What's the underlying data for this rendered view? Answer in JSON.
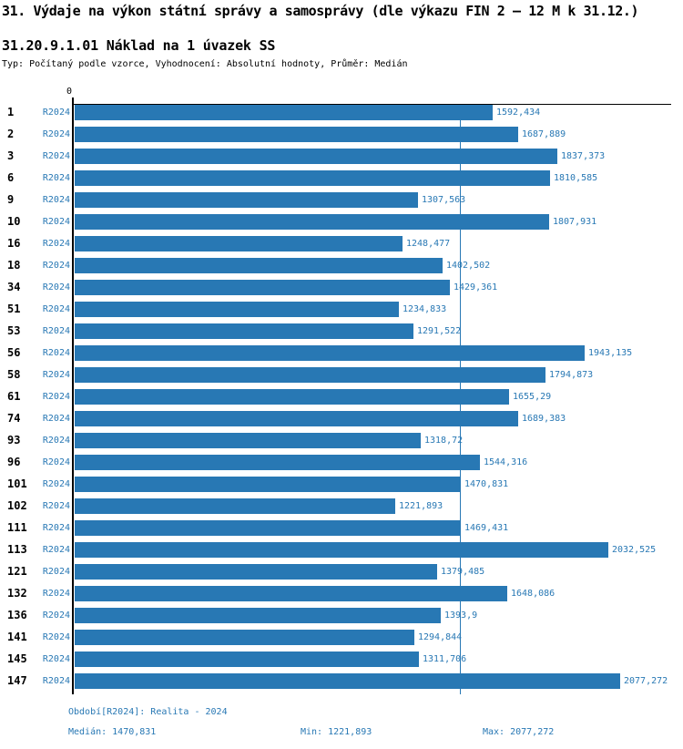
{
  "title": "31. Výdaje na výkon státní správy a samosprávy (dle výkazu FIN 2 – 12 M k 31.12.)",
  "subtitle": "31.20.9.1.01 Náklad na 1 úvazek SS",
  "meta_line": "Typ: Počítaný podle vzorce, Vyhodnocení: Absolutní hodnoty, Průměr: Medián",
  "axis": {
    "zero_label": "0"
  },
  "chart_data": {
    "type": "bar",
    "orientation": "horizontal",
    "series_label": "R2024",
    "bar_color": "#2878b4",
    "median_value": 1470.831,
    "xlim": [
      0,
      2275
    ],
    "grid": false,
    "rows": [
      {
        "category": "1",
        "period": "R2024",
        "value": 1592.434,
        "display": "1592,434"
      },
      {
        "category": "2",
        "period": "R2024",
        "value": 1687.889,
        "display": "1687,889"
      },
      {
        "category": "3",
        "period": "R2024",
        "value": 1837.373,
        "display": "1837,373"
      },
      {
        "category": "6",
        "period": "R2024",
        "value": 1810.585,
        "display": "1810,585"
      },
      {
        "category": "9",
        "period": "R2024",
        "value": 1307.563,
        "display": "1307,563"
      },
      {
        "category": "10",
        "period": "R2024",
        "value": 1807.931,
        "display": "1807,931"
      },
      {
        "category": "16",
        "period": "R2024",
        "value": 1248.477,
        "display": "1248,477"
      },
      {
        "category": "18",
        "period": "R2024",
        "value": 1402.502,
        "display": "1402,502"
      },
      {
        "category": "34",
        "period": "R2024",
        "value": 1429.361,
        "display": "1429,361"
      },
      {
        "category": "51",
        "period": "R2024",
        "value": 1234.833,
        "display": "1234,833"
      },
      {
        "category": "53",
        "period": "R2024",
        "value": 1291.522,
        "display": "1291,522"
      },
      {
        "category": "56",
        "period": "R2024",
        "value": 1943.135,
        "display": "1943,135"
      },
      {
        "category": "58",
        "period": "R2024",
        "value": 1794.873,
        "display": "1794,873"
      },
      {
        "category": "61",
        "period": "R2024",
        "value": 1655.29,
        "display": "1655,29"
      },
      {
        "category": "74",
        "period": "R2024",
        "value": 1689.383,
        "display": "1689,383"
      },
      {
        "category": "93",
        "period": "R2024",
        "value": 1318.72,
        "display": "1318,72"
      },
      {
        "category": "96",
        "period": "R2024",
        "value": 1544.316,
        "display": "1544,316"
      },
      {
        "category": "101",
        "period": "R2024",
        "value": 1470.831,
        "display": "1470,831"
      },
      {
        "category": "102",
        "period": "R2024",
        "value": 1221.893,
        "display": "1221,893"
      },
      {
        "category": "111",
        "period": "R2024",
        "value": 1469.431,
        "display": "1469,431"
      },
      {
        "category": "113",
        "period": "R2024",
        "value": 2032.525,
        "display": "2032,525"
      },
      {
        "category": "121",
        "period": "R2024",
        "value": 1379.485,
        "display": "1379,485"
      },
      {
        "category": "132",
        "period": "R2024",
        "value": 1648.086,
        "display": "1648,086"
      },
      {
        "category": "136",
        "period": "R2024",
        "value": 1393.9,
        "display": "1393,9"
      },
      {
        "category": "141",
        "period": "R2024",
        "value": 1294.844,
        "display": "1294,844"
      },
      {
        "category": "145",
        "period": "R2024",
        "value": 1311.706,
        "display": "1311,706"
      },
      {
        "category": "147",
        "period": "R2024",
        "value": 2077.272,
        "display": "2077,272"
      }
    ]
  },
  "footer": {
    "period_line": "Období[R2024]: Realita - 2024",
    "median": "Medián: 1470,831",
    "min": "Min: 1221,893",
    "max": "Max: 2077,272"
  }
}
